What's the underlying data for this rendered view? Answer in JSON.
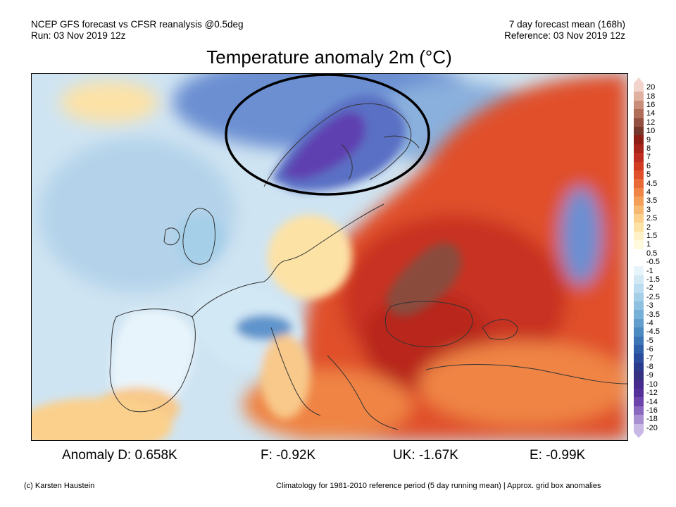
{
  "header": {
    "model_line": "NCEP GFS forecast vs CFSR reanalysis @0.5deg",
    "run_line": "Run: 03 Nov 2019 12z",
    "mean_line": "7 day forecast mean (168h)",
    "reference_line": "Reference: 03 Nov 2019 12z"
  },
  "title": "Temperature anomaly 2m (°C)",
  "colorbar": {
    "labels": [
      "20",
      "18",
      "16",
      "14",
      "12",
      "10",
      "9",
      "8",
      "7",
      "6",
      "5",
      "4.5",
      "4",
      "3.5",
      "3",
      "2.5",
      "2",
      "1.5",
      "1",
      "0.5",
      "-0.5",
      "-1",
      "-1.5",
      "-2",
      "-2.5",
      "-3",
      "-3.5",
      "-4",
      "-4.5",
      "-5",
      "-6",
      "-7",
      "-8",
      "-9",
      "-10",
      "-12",
      "-14",
      "-16",
      "-18",
      "-20"
    ],
    "colors": [
      "#f2d4cc",
      "#e0b1a1",
      "#c98e7a",
      "#b06d58",
      "#935040",
      "#76382c",
      "#8e1d15",
      "#a8231a",
      "#be2d1f",
      "#d23b22",
      "#e0502b",
      "#e86a36",
      "#ef8444",
      "#f39f58",
      "#f7b971",
      "#fbd08c",
      "#fde2a6",
      "#fff0c6",
      "#fffadc",
      "#ffffff",
      "#ffffff",
      "#e8f4fb",
      "#d2e8f5",
      "#bcdcef",
      "#a5cfe8",
      "#8ec0e0",
      "#77b0d7",
      "#619ecd",
      "#4c8bc2",
      "#3b75b6",
      "#3160aa",
      "#2b4c9c",
      "#2a3a8d",
      "#35307f",
      "#462b8c",
      "#56309a",
      "#6c44ab",
      "#8a68c0",
      "#a890d3",
      "#c8b8e6"
    ]
  },
  "map": {
    "region": "Europe",
    "highlight": "Scandinavia cold anomaly (circled)",
    "colors": {
      "ocean_cold": "#cfe4f2",
      "ocean_mid": "#b4d3ea",
      "scandinavia": "#5a6fc4",
      "scandinavia_core": "#5e40b0",
      "arctic": "#6c8fd2",
      "east_warm": "#e04f2c",
      "east_hot": "#b8261c",
      "hotspot": "#8a4c3c",
      "iberia": "#f8c98a",
      "coast": "#333333"
    }
  },
  "stats": {
    "germany": "Anomaly D: 0.658K",
    "france": "F: -0.92K",
    "uk": "UK: -1.67K",
    "europe": "E: -0.99K"
  },
  "footer": {
    "credit": "(c) Karsten Haustein",
    "note": "Climatology for 1981-2010 reference period (5 day running mean) | Approx. grid box anomalies"
  }
}
